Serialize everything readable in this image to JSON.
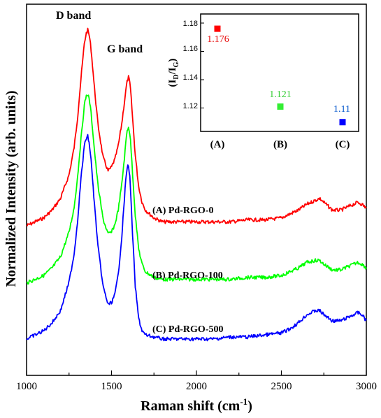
{
  "chart_data": [
    {
      "type": "line",
      "xlabel": "Raman shift (cm",
      "xlabel_sup": "-1",
      "xlabel_end": ")",
      "ylabel": "Normalized Intensity (arb. units)",
      "xlim": [
        1000,
        3000
      ],
      "x_ticks": [
        "1000",
        "1500",
        "2000",
        "2500",
        "3000"
      ],
      "annotations": [
        "D band",
        "G band"
      ],
      "series_labels": [
        "(A) Pd-RGO-0",
        "(B) Pd-RGO-100",
        "(C) Pd-RGO-500"
      ],
      "series": [
        {
          "label": "(A) Pd-RGO-0",
          "color": "#ff0000",
          "x": [
            1000,
            1050,
            1100,
            1150,
            1200,
            1250,
            1280,
            1300,
            1320,
            1340,
            1350,
            1360,
            1370,
            1380,
            1400,
            1420,
            1450,
            1480,
            1500,
            1520,
            1540,
            1560,
            1580,
            1590,
            1600,
            1610,
            1620,
            1640,
            1660,
            1680,
            1700,
            1750,
            1800,
            1900,
            2000,
            2100,
            2200,
            2300,
            2400,
            2500,
            2550,
            2600,
            2650,
            2700,
            2725,
            2750,
            2800,
            2850,
            2900,
            2950,
            2975,
            3000
          ],
          "y": [
            0.0,
            0.02,
            0.04,
            0.08,
            0.14,
            0.26,
            0.4,
            0.55,
            0.75,
            0.93,
            0.98,
            1.0,
            0.97,
            0.9,
            0.7,
            0.52,
            0.35,
            0.28,
            0.3,
            0.34,
            0.41,
            0.52,
            0.66,
            0.73,
            0.76,
            0.72,
            0.6,
            0.36,
            0.2,
            0.12,
            0.08,
            0.04,
            0.02,
            0.02,
            0.02,
            0.02,
            0.02,
            0.03,
            0.03,
            0.04,
            0.06,
            0.08,
            0.11,
            0.13,
            0.14,
            0.12,
            0.08,
            0.08,
            0.1,
            0.12,
            0.11,
            0.09
          ]
        },
        {
          "label": "(B) Pd-RGO-100",
          "color": "#00ff00",
          "x": [
            1000,
            1050,
            1100,
            1150,
            1200,
            1250,
            1280,
            1300,
            1320,
            1340,
            1350,
            1360,
            1370,
            1380,
            1400,
            1420,
            1450,
            1480,
            1500,
            1520,
            1540,
            1560,
            1580,
            1590,
            1600,
            1610,
            1620,
            1640,
            1660,
            1680,
            1700,
            1750,
            1800,
            1900,
            2000,
            2100,
            2200,
            2300,
            2400,
            2500,
            2550,
            2600,
            2650,
            2700,
            2725,
            2750,
            2800,
            2850,
            2900,
            2950,
            2975,
            3000
          ],
          "y": [
            0.0,
            0.02,
            0.04,
            0.08,
            0.14,
            0.27,
            0.4,
            0.56,
            0.76,
            0.94,
            0.99,
            1.0,
            0.97,
            0.9,
            0.7,
            0.52,
            0.34,
            0.26,
            0.27,
            0.31,
            0.39,
            0.52,
            0.7,
            0.8,
            0.83,
            0.78,
            0.64,
            0.36,
            0.18,
            0.1,
            0.06,
            0.03,
            0.02,
            0.02,
            0.02,
            0.02,
            0.02,
            0.03,
            0.03,
            0.04,
            0.06,
            0.08,
            0.11,
            0.12,
            0.12,
            0.1,
            0.07,
            0.07,
            0.09,
            0.11,
            0.1,
            0.08
          ]
        },
        {
          "label": "(C) Pd-RGO-500",
          "color": "#0000ff",
          "x": [
            1000,
            1050,
            1100,
            1150,
            1200,
            1250,
            1280,
            1300,
            1320,
            1340,
            1350,
            1360,
            1370,
            1380,
            1400,
            1420,
            1450,
            1480,
            1500,
            1520,
            1540,
            1560,
            1580,
            1590,
            1600,
            1610,
            1620,
            1640,
            1660,
            1680,
            1700,
            1750,
            1800,
            1900,
            2000,
            2100,
            2200,
            2300,
            2400,
            2500,
            2550,
            2600,
            2650,
            2700,
            2725,
            2750,
            2800,
            2850,
            2900,
            2950,
            2975,
            3000
          ],
          "y": [
            0.0,
            0.02,
            0.04,
            0.08,
            0.14,
            0.28,
            0.42,
            0.58,
            0.79,
            0.95,
            0.99,
            1.0,
            0.96,
            0.88,
            0.66,
            0.46,
            0.26,
            0.17,
            0.18,
            0.22,
            0.32,
            0.5,
            0.74,
            0.84,
            0.86,
            0.78,
            0.58,
            0.26,
            0.1,
            0.04,
            0.02,
            0.01,
            0.0,
            0.0,
            0.0,
            0.0,
            0.01,
            0.01,
            0.02,
            0.03,
            0.05,
            0.08,
            0.12,
            0.14,
            0.14,
            0.12,
            0.09,
            0.09,
            0.11,
            0.13,
            0.12,
            0.09
          ]
        }
      ]
    },
    {
      "type": "scatter",
      "ylabel": "(I",
      "ylabel_sub1": "D",
      "ylabel_mid": "/I",
      "ylabel_sub2": "G",
      "ylabel_end": ")",
      "categories": [
        "(A)",
        "(B)",
        "(C)"
      ],
      "values": [
        1.176,
        1.121,
        1.11
      ],
      "value_labels": [
        "1.176",
        "1.121",
        "1.11"
      ],
      "colors": [
        "#ff0000",
        "#33ee33",
        "#0000ff"
      ],
      "label_colors": [
        "#e60000",
        "#33cc33",
        "#0055cc"
      ],
      "ylim": [
        1.1,
        1.18
      ],
      "y_ticks": [
        "1.12",
        "1.14",
        "1.16",
        "1.18"
      ]
    }
  ]
}
